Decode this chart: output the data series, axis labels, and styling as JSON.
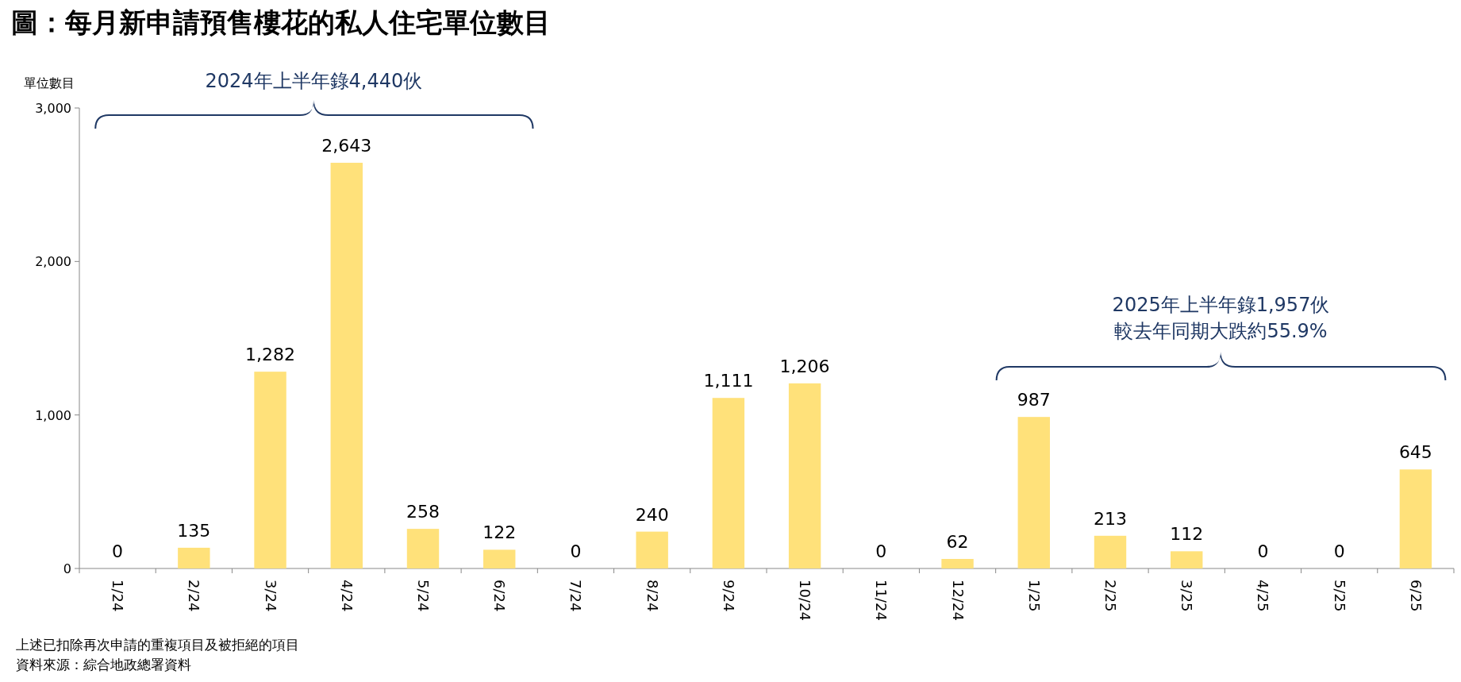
{
  "chart_data": {
    "type": "bar",
    "title": "圖：每月新申請預售樓花的私人住宅單位數目",
    "ylabel": "單位數目",
    "categories": [
      "1/24",
      "2/24",
      "3/24",
      "4/24",
      "5/24",
      "6/24",
      "7/24",
      "8/24",
      "9/24",
      "10/24",
      "11/24",
      "12/24",
      "1/25",
      "2/25",
      "3/25",
      "4/25",
      "5/25",
      "6/25"
    ],
    "values": [
      0,
      135,
      1282,
      2643,
      258,
      122,
      0,
      240,
      1111,
      1206,
      0,
      62,
      987,
      213,
      112,
      0,
      0,
      645
    ],
    "color": "#ffe17a",
    "ylim": [
      0,
      3000
    ],
    "yticks": [
      0,
      {
        "value": 1000,
        "label": "1,000"
      },
      {
        "value": 2000,
        "label": "2,000"
      },
      {
        "value": 3000,
        "label": "3,000"
      }
    ],
    "value_labels": [
      "0",
      "135",
      "1,282",
      "2,643",
      "258",
      "122",
      "0",
      "240",
      "1,111",
      "1,206",
      "0",
      "62",
      "987",
      "213",
      "112",
      "0",
      "0",
      "645"
    ],
    "annotations": [
      "2024年上半年錄4,440伙",
      "2025年上半年錄1,957伙",
      "較去年同期大跌約55.9%",
      "上述已扣除再次申請的重複項目及被拒絕的項目",
      "資料來源：綜合地政總署資料"
    ]
  }
}
